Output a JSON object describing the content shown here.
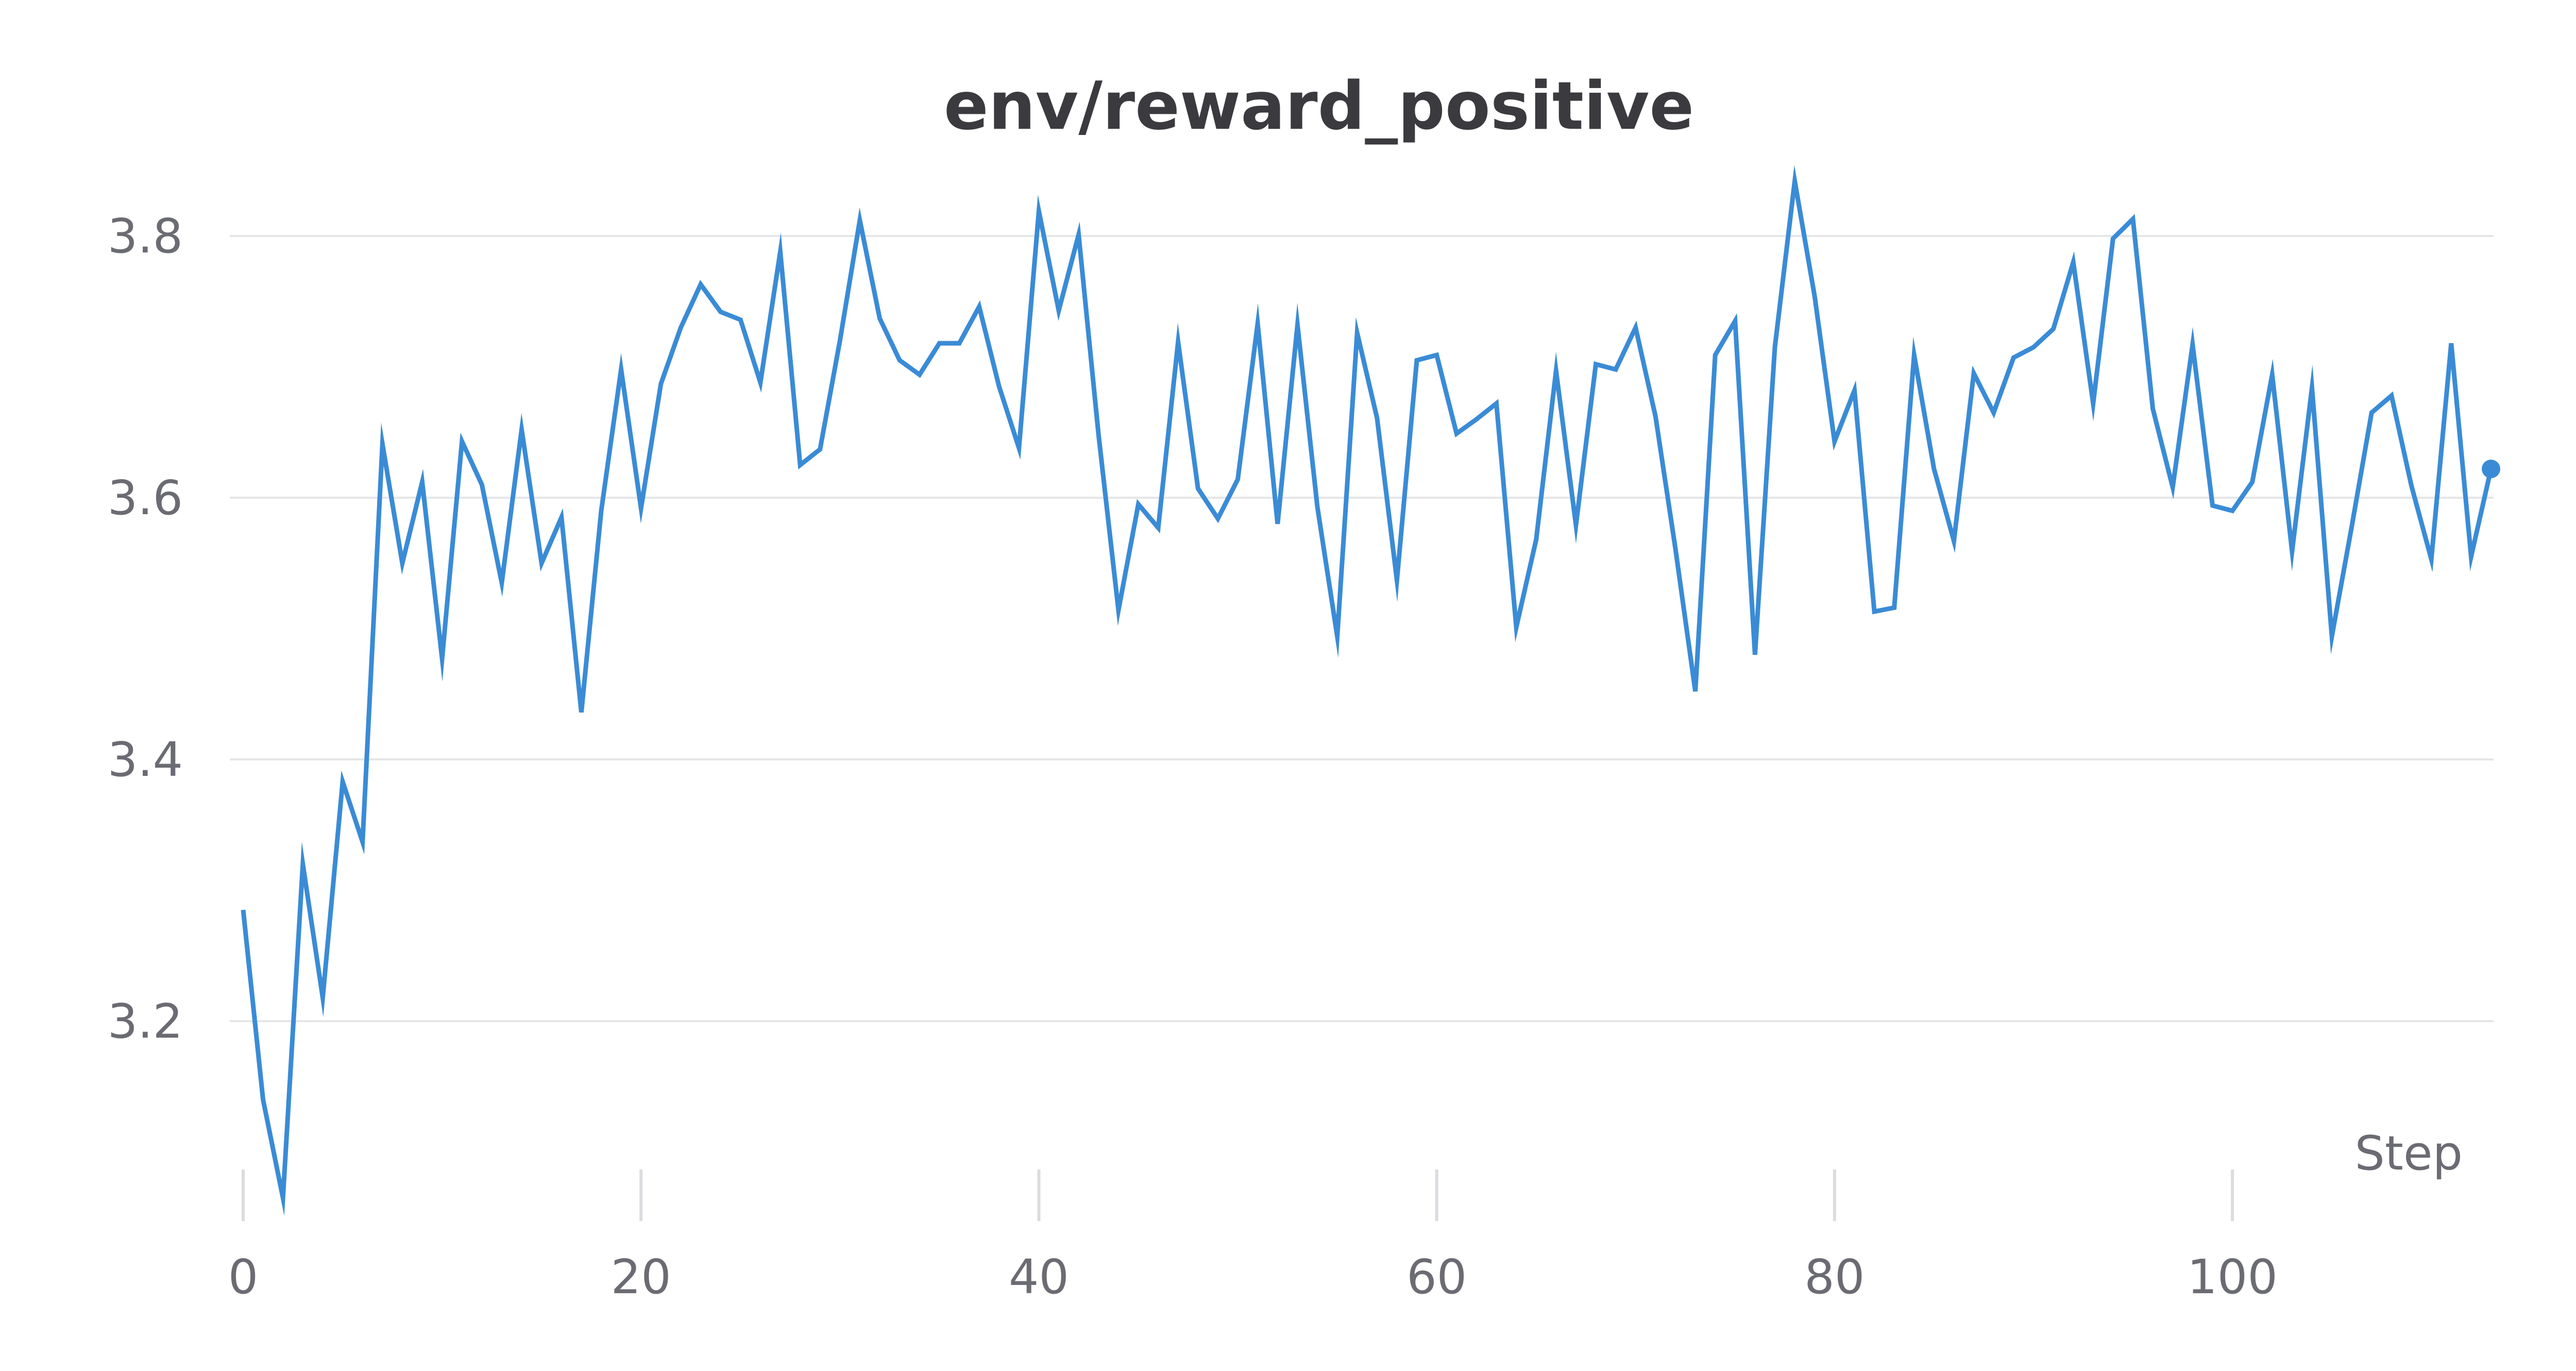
{
  "chart_data": {
    "type": "line",
    "title": "env/reward_positive",
    "xlabel": "Step",
    "ylabel": "",
    "xlim": [
      0,
      113
    ],
    "ylim": [
      3.06,
      3.86
    ],
    "x_ticks": [
      0,
      20,
      40,
      60,
      80,
      100
    ],
    "y_ticks": [
      3.2,
      3.4,
      3.6,
      3.8
    ],
    "x_tick_labels": [
      "0",
      "20",
      "40",
      "60",
      "80",
      "100"
    ],
    "y_tick_labels": [
      "3.2",
      "3.4",
      "3.6",
      "3.8"
    ],
    "grid": "horizontal",
    "legend": "none",
    "series": [
      {
        "color": "#3a8bd6",
        "x": [
          0,
          1,
          2,
          3,
          4,
          5,
          6,
          7,
          8,
          9,
          10,
          11,
          12,
          13,
          14,
          15,
          16,
          17,
          18,
          19,
          20,
          21,
          22,
          23,
          24,
          25,
          26,
          27,
          28,
          29,
          30,
          31,
          32,
          33,
          34,
          35,
          36,
          37,
          38,
          39,
          40,
          41,
          42,
          43,
          44,
          45,
          46,
          47,
          48,
          49,
          50,
          51,
          52,
          53,
          54,
          55,
          56,
          57,
          58,
          59,
          60,
          61,
          62,
          63,
          64,
          65,
          66,
          67,
          68,
          69,
          70,
          71,
          72,
          73,
          74,
          75,
          76,
          77,
          78,
          79,
          80,
          81,
          82,
          83,
          84,
          85,
          86,
          87,
          88,
          89,
          90,
          91,
          92,
          93,
          94,
          95,
          96,
          97,
          98,
          99,
          100,
          101,
          102,
          103,
          104,
          105,
          106,
          107,
          108,
          109,
          110,
          111,
          112,
          113
        ],
        "values": [
          3.285,
          3.14,
          3.065,
          3.32,
          3.218,
          3.383,
          3.337,
          3.641,
          3.55,
          3.612,
          3.477,
          3.643,
          3.61,
          3.535,
          3.652,
          3.55,
          3.585,
          3.436,
          3.59,
          3.698,
          3.592,
          3.687,
          3.73,
          3.763,
          3.742,
          3.736,
          3.688,
          3.788,
          3.625,
          3.637,
          3.72,
          3.812,
          3.737,
          3.705,
          3.694,
          3.718,
          3.718,
          3.746,
          3.685,
          3.638,
          3.819,
          3.743,
          3.801,
          3.648,
          3.514,
          3.595,
          3.577,
          3.719,
          3.607,
          3.584,
          3.614,
          3.733,
          3.58,
          3.732,
          3.593,
          3.494,
          3.726,
          3.661,
          3.537,
          3.705,
          3.709,
          3.649,
          3.66,
          3.672,
          3.501,
          3.568,
          3.697,
          3.579,
          3.702,
          3.698,
          3.73,
          3.662,
          3.561,
          3.452,
          3.709,
          3.735,
          3.48,
          3.715,
          3.842,
          3.754,
          3.643,
          3.682,
          3.513,
          3.516,
          3.709,
          3.622,
          3.567,
          3.695,
          3.665,
          3.707,
          3.715,
          3.729,
          3.78,
          3.672,
          3.798,
          3.813,
          3.668,
          3.608,
          3.717,
          3.594,
          3.59,
          3.612,
          3.694,
          3.559,
          3.684,
          3.494,
          3.578,
          3.665,
          3.678,
          3.609,
          3.553,
          3.718,
          3.555,
          3.622
        ]
      }
    ]
  }
}
